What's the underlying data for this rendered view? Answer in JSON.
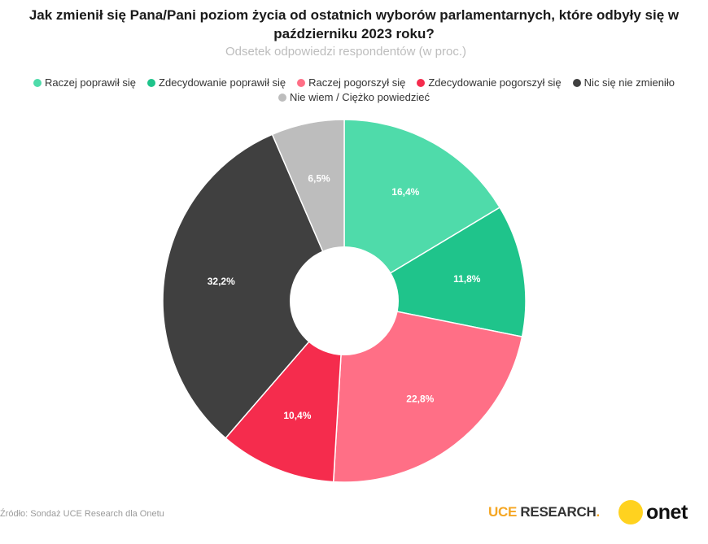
{
  "chart_data": {
    "type": "pie",
    "title": "Jak zmienił się Pana/Pani poziom życia od ostatnich wyborów parlamentarnych, które odbyły się w październiku 2023 roku?",
    "title_line1": "Jak zmienił się Pana/Pani poziom życia od ostatnich wyborów parlamentarnych, które odbyły się w",
    "title_line2": "październiku 2023 roku?",
    "subtitle": "Odsetek odpowiedzi respondentów (w proc.)",
    "legend_position": "top",
    "donut": true,
    "slices": [
      {
        "name": "Raczej poprawił się",
        "value": 16.4,
        "label": "16,4%",
        "color": "#4fdbaa"
      },
      {
        "name": "Zdecydowanie poprawił się",
        "value": 11.8,
        "label": "11,8%",
        "color": "#1fc48b"
      },
      {
        "name": "Raczej pogorszył się",
        "value": 22.8,
        "label": "22,8%",
        "color": "#ff6f86"
      },
      {
        "name": "Zdecydowanie pogorszył się",
        "value": 10.4,
        "label": "10,4%",
        "color": "#f52c4d"
      },
      {
        "name": "Nic się nie zmieniło",
        "value": 32.2,
        "label": "32,2%",
        "color": "#404040"
      },
      {
        "name": "Nie wiem / Ciężko powiedzieć",
        "value": 6.5,
        "label": "6,5%",
        "color": "#bdbdbd"
      }
    ]
  },
  "footer": {
    "source": "Źródło: Sondaż UCE Research dla Onetu",
    "brand_uce_part1": "UCE",
    "brand_uce_part2": " RESEARCH",
    "brand_uce_dot": ".",
    "brand_onet": "onet"
  }
}
